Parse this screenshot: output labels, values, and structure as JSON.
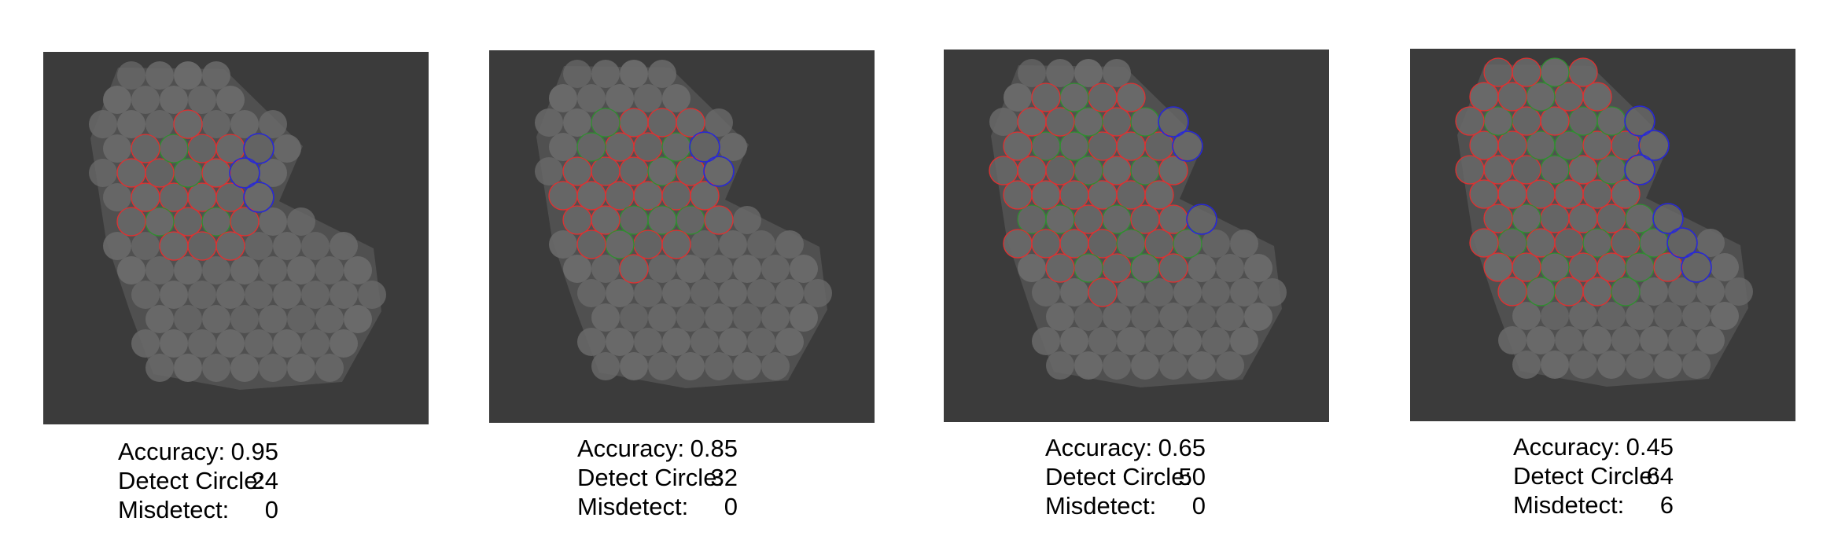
{
  "panels": [
    {
      "accuracy_label": "Accuracy:",
      "accuracy_value": "0.95",
      "detect_label": "Detect Circle:",
      "detect_value": "24",
      "misdetect_label": "Misdetect:",
      "misdetect_value": "0",
      "circle_counts": {
        "red": 17,
        "green": 4,
        "blue": 3
      }
    },
    {
      "accuracy_label": "Accuracy:",
      "accuracy_value": "0.85",
      "detect_label": "Detect Circle:",
      "detect_value": "32",
      "misdetect_label": "Misdetect:",
      "misdetect_value": "0",
      "circle_counts": {
        "red": 22,
        "green": 8,
        "blue": 2
      }
    },
    {
      "accuracy_label": "Accuracy:",
      "accuracy_value": "0.65",
      "detect_label": "Detect Circle:",
      "detect_value": "50",
      "misdetect_label": "Misdetect:",
      "misdetect_value": "0",
      "circle_counts": {
        "red": 33,
        "green": 14,
        "blue": 3
      }
    },
    {
      "accuracy_label": "Accuracy:",
      "accuracy_value": "0.45",
      "detect_label": "Detect Circle:",
      "detect_value": "64",
      "misdetect_label": "Misdetect:",
      "misdetect_value": "6",
      "circle_counts": {
        "red": 40,
        "green": 18,
        "blue": 6
      }
    }
  ],
  "colors": {
    "background": "#3b3b3b",
    "particle": "#6a6a6a",
    "red_circle": "#e03030",
    "green_circle": "#2f8f2f",
    "blue_circle": "#2828d8"
  }
}
